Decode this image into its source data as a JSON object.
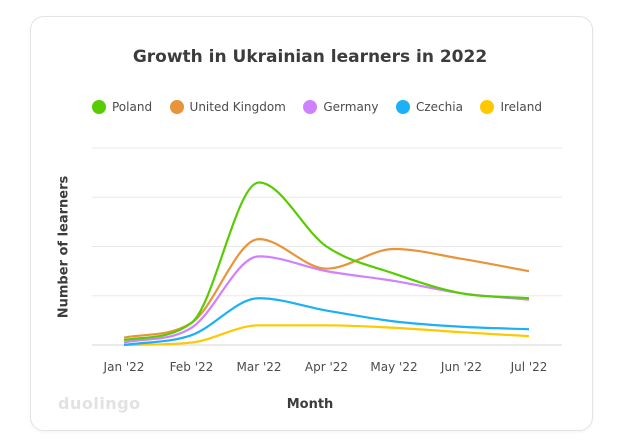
{
  "chart_data": {
    "type": "line",
    "title": "Growth in Ukrainian learners in 2022",
    "xlabel": "Month",
    "ylabel": "Number of learners",
    "categories": [
      "Jan '22",
      "Feb '22",
      "Mar '22",
      "Apr '22",
      "May '22",
      "Jun '22",
      "Jul '22"
    ],
    "ylim": [
      0,
      4
    ],
    "grid": true,
    "legend_position": "top",
    "series": [
      {
        "name": "Poland",
        "color": "#58CC02",
        "values": [
          0.1,
          0.45,
          3.3,
          2.0,
          1.45,
          1.05,
          0.95
        ]
      },
      {
        "name": "United Kingdom",
        "color": "#E8943A",
        "values": [
          0.15,
          0.45,
          2.15,
          1.55,
          1.95,
          1.75,
          1.5
        ]
      },
      {
        "name": "Germany",
        "color": "#CE82FF",
        "values": [
          0.05,
          0.35,
          1.8,
          1.5,
          1.3,
          1.05,
          0.92
        ]
      },
      {
        "name": "Czechia",
        "color": "#1CB0F6",
        "values": [
          0.0,
          0.2,
          0.95,
          0.7,
          0.48,
          0.37,
          0.32
        ]
      },
      {
        "name": "Ireland",
        "color": "#FFC800",
        "values": [
          0.0,
          0.05,
          0.4,
          0.4,
          0.35,
          0.26,
          0.18
        ]
      }
    ]
  },
  "brand": {
    "watermark": "duolingo"
  }
}
